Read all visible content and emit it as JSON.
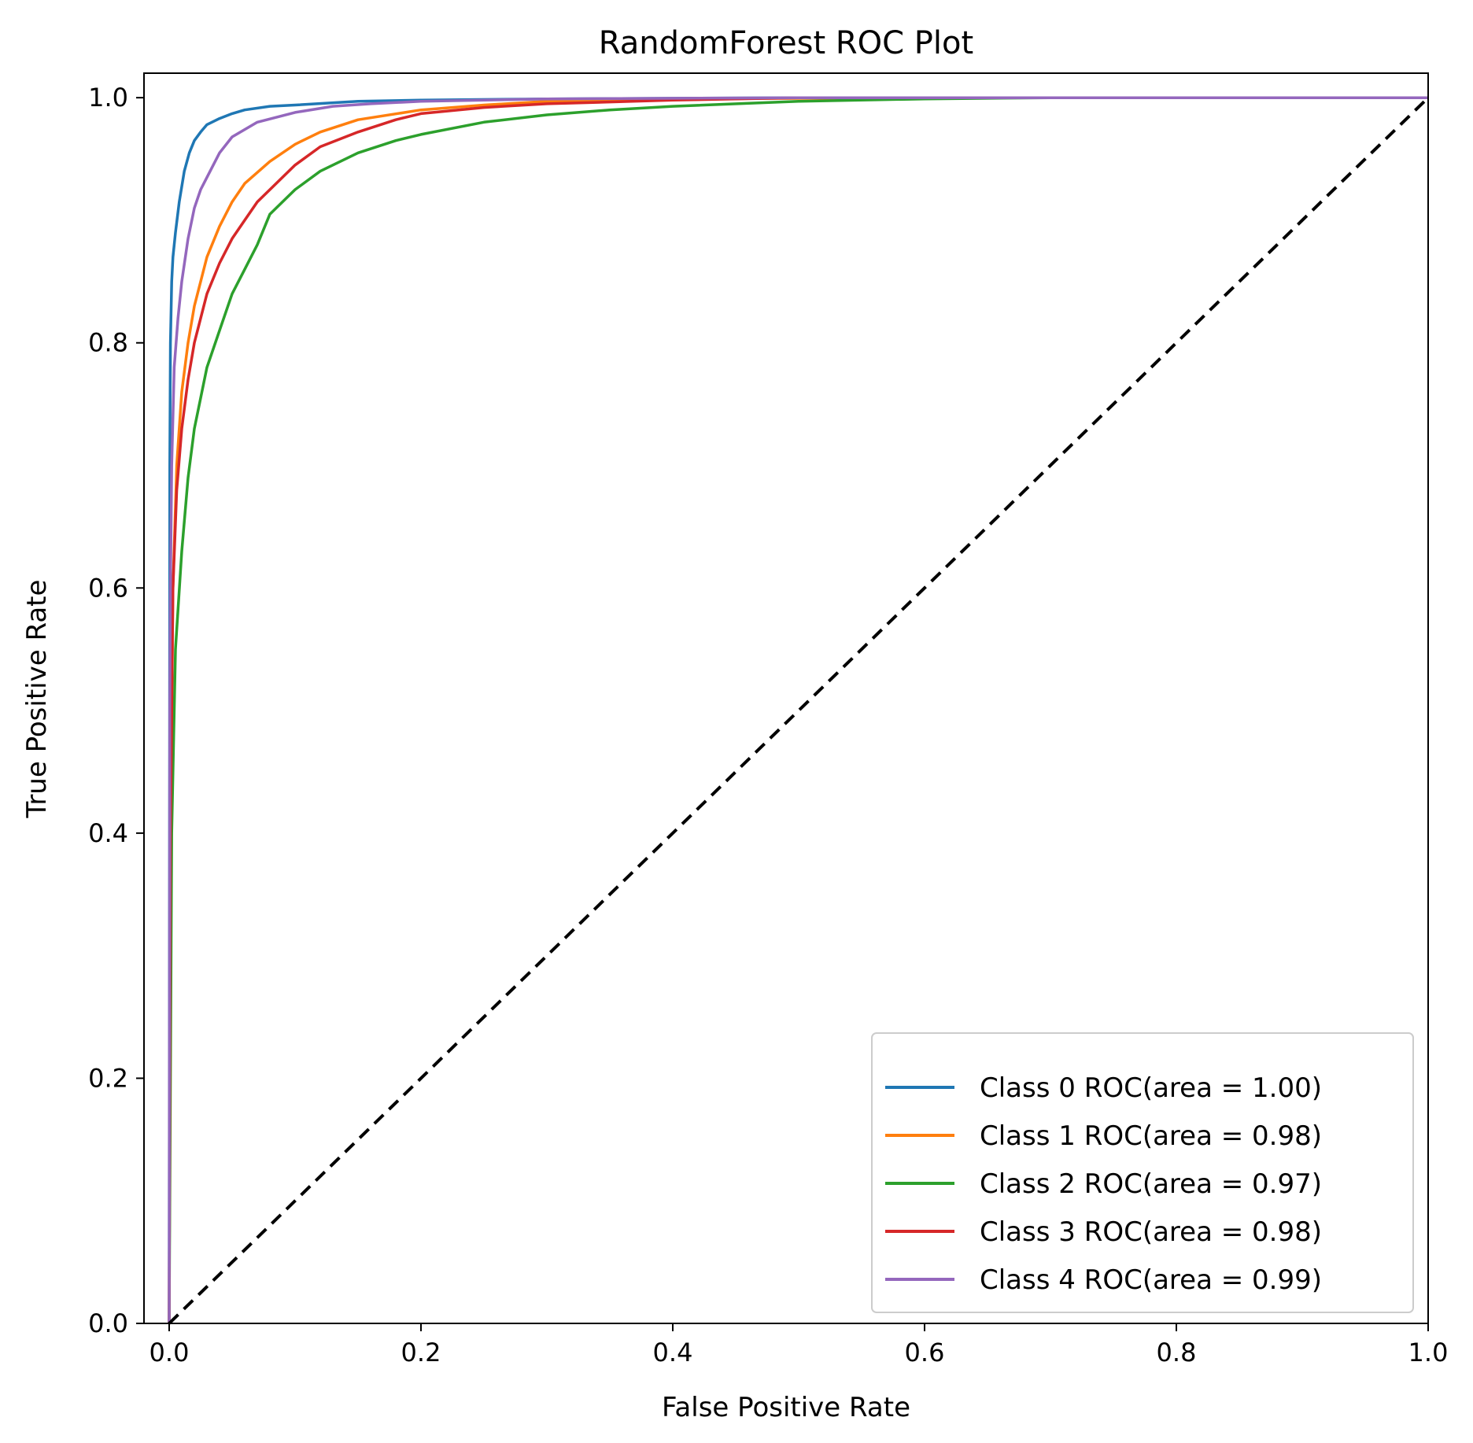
{
  "chart_data": {
    "type": "line",
    "title": "RandomForest ROC Plot",
    "xlabel": "False Positive Rate",
    "ylabel": "True Positive Rate",
    "xlim": [
      -0.02,
      1.0
    ],
    "ylim": [
      0.0,
      1.02
    ],
    "xticks": [
      "0.0",
      "0.2",
      "0.4",
      "0.6",
      "0.8",
      "1.0"
    ],
    "yticks": [
      "0.0",
      "0.2",
      "0.4",
      "0.6",
      "0.8",
      "1.0"
    ],
    "grid": false,
    "legend_position": "lower-right",
    "series": [
      {
        "name": "Class 0 ROC(area = 1.00)",
        "color": "#1f77b4",
        "x": [
          0,
          0.0005,
          0.001,
          0.002,
          0.003,
          0.005,
          0.008,
          0.012,
          0.016,
          0.02,
          0.025,
          0.03,
          0.04,
          0.05,
          0.06,
          0.08,
          0.1,
          0.15,
          0.2,
          0.3,
          0.5,
          1.0
        ],
        "y": [
          0,
          0.7,
          0.8,
          0.85,
          0.87,
          0.89,
          0.915,
          0.94,
          0.955,
          0.965,
          0.972,
          0.978,
          0.983,
          0.987,
          0.99,
          0.993,
          0.994,
          0.997,
          0.998,
          0.999,
          1.0,
          1.0
        ]
      },
      {
        "name": "Class 1 ROC(area = 0.98)",
        "color": "#ff7f0e",
        "x": [
          0,
          0.001,
          0.003,
          0.006,
          0.01,
          0.015,
          0.02,
          0.03,
          0.04,
          0.05,
          0.06,
          0.08,
          0.1,
          0.12,
          0.15,
          0.2,
          0.25,
          0.3,
          0.4,
          0.6,
          1.0
        ],
        "y": [
          0,
          0.4,
          0.6,
          0.7,
          0.76,
          0.8,
          0.83,
          0.87,
          0.895,
          0.915,
          0.93,
          0.948,
          0.962,
          0.972,
          0.982,
          0.99,
          0.994,
          0.997,
          0.999,
          1.0,
          1.0
        ]
      },
      {
        "name": "Class 2 ROC(area = 0.97)",
        "color": "#2ca02c",
        "x": [
          0,
          0.002,
          0.005,
          0.01,
          0.015,
          0.02,
          0.03,
          0.04,
          0.05,
          0.06,
          0.07,
          0.08,
          0.1,
          0.12,
          0.15,
          0.18,
          0.2,
          0.25,
          0.3,
          0.35,
          0.4,
          0.5,
          0.6,
          0.7,
          1.0
        ],
        "y": [
          0,
          0.4,
          0.55,
          0.63,
          0.69,
          0.73,
          0.78,
          0.81,
          0.84,
          0.86,
          0.88,
          0.905,
          0.925,
          0.94,
          0.955,
          0.965,
          0.97,
          0.98,
          0.986,
          0.99,
          0.993,
          0.997,
          0.999,
          1.0,
          1.0
        ]
      },
      {
        "name": "Class 3 ROC(area = 0.98)",
        "color": "#d62728",
        "x": [
          0,
          0.001,
          0.003,
          0.006,
          0.01,
          0.015,
          0.02,
          0.03,
          0.04,
          0.05,
          0.06,
          0.07,
          0.08,
          0.1,
          0.12,
          0.15,
          0.18,
          0.2,
          0.25,
          0.3,
          0.4,
          0.5,
          1.0
        ],
        "y": [
          0,
          0.4,
          0.6,
          0.68,
          0.73,
          0.77,
          0.8,
          0.84,
          0.865,
          0.885,
          0.9,
          0.915,
          0.925,
          0.945,
          0.96,
          0.972,
          0.982,
          0.987,
          0.992,
          0.995,
          0.998,
          1.0,
          1.0
        ]
      },
      {
        "name": "Class 4 ROC(area = 0.99)",
        "color": "#9467bd",
        "x": [
          0,
          0.0005,
          0.001,
          0.002,
          0.004,
          0.007,
          0.01,
          0.015,
          0.02,
          0.025,
          0.03,
          0.04,
          0.05,
          0.07,
          0.1,
          0.13,
          0.16,
          0.2,
          0.3,
          0.5,
          1.0
        ],
        "y": [
          0,
          0.5,
          0.6,
          0.7,
          0.78,
          0.82,
          0.85,
          0.885,
          0.91,
          0.925,
          0.935,
          0.955,
          0.968,
          0.98,
          0.988,
          0.993,
          0.995,
          0.997,
          0.999,
          1.0,
          1.0
        ]
      }
    ],
    "reference_line": {
      "x": [
        0,
        1
      ],
      "y": [
        0,
        1
      ],
      "color": "#000000",
      "style": "dashed"
    }
  }
}
